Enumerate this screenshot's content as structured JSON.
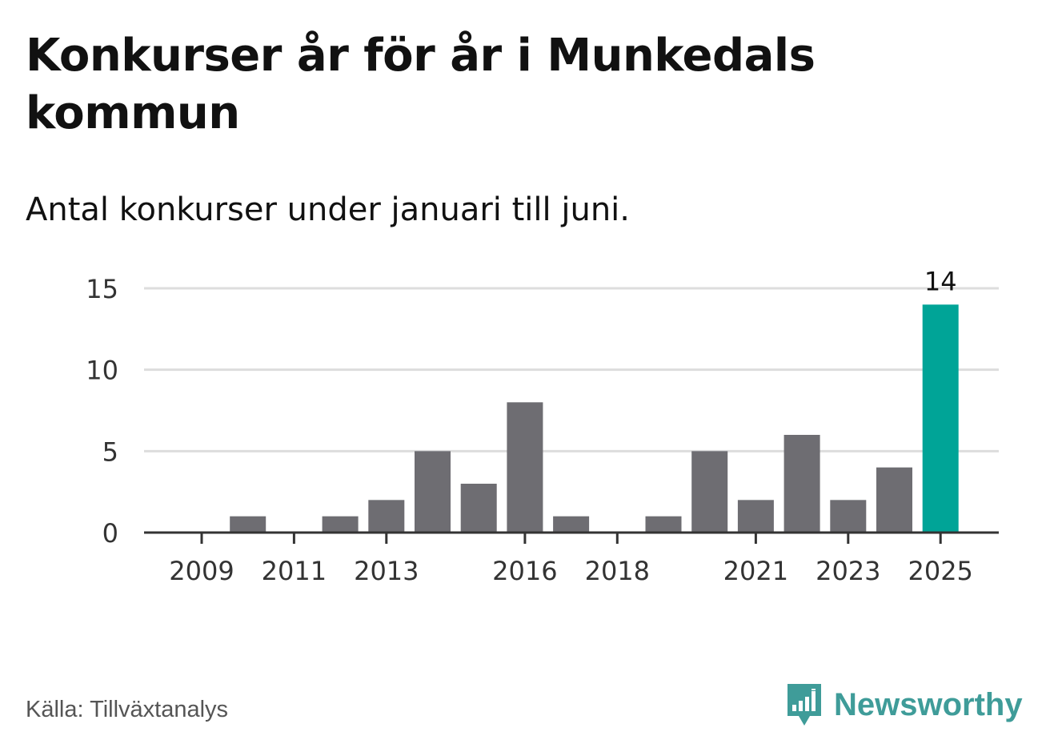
{
  "title": "Konkurser år för år i Munkedals kommun",
  "subtitle": "Antal konkurser under januari till juni.",
  "source": "Källa: Tillväxtanalys",
  "brand": {
    "name": "Newsworthy",
    "icon": "newsworthy-logo-icon",
    "color": "#3f9c99"
  },
  "colors": {
    "bar": "#6e6d72",
    "highlight": "#00a497",
    "grid": "#dddddd",
    "axis": "#333333"
  },
  "chart_data": {
    "type": "bar",
    "categories": [
      "2009",
      "2010",
      "2011",
      "2012",
      "2013",
      "2014",
      "2015",
      "2016",
      "2017",
      "2018",
      "2019",
      "2020",
      "2021",
      "2022",
      "2023",
      "2024",
      "2025"
    ],
    "values": [
      0,
      1,
      0,
      1,
      2,
      5,
      3,
      8,
      1,
      0,
      1,
      5,
      2,
      6,
      2,
      4,
      14
    ],
    "x_tick_labels": [
      "2009",
      "2011",
      "2013",
      "2016",
      "2018",
      "2021",
      "2023",
      "2025"
    ],
    "y_ticks": [
      0,
      5,
      10,
      15
    ],
    "ylim": [
      0,
      15
    ],
    "highlight_category": "2025",
    "data_labels": [
      {
        "category": "2025",
        "text": "14"
      }
    ],
    "grid": true,
    "legend": "none",
    "xlabel": "",
    "ylabel": ""
  }
}
